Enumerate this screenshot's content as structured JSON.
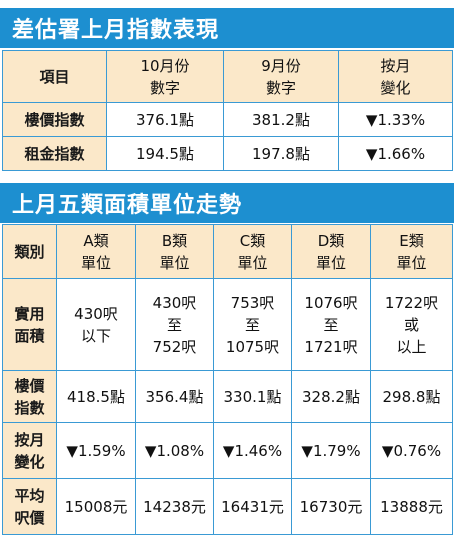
{
  "section1": {
    "title": "差估署上月指數表現",
    "headers": [
      {
        "line1": "項目",
        "line2": ""
      },
      {
        "line1": "10月份",
        "line2": "數字"
      },
      {
        "line1": "9月份",
        "line2": "數字"
      },
      {
        "line1": "按月",
        "line2": "變化"
      }
    ],
    "rows": [
      {
        "label": "樓價指數",
        "oct": "376.1點",
        "sep": "381.2點",
        "change": "▼1.33%"
      },
      {
        "label": "租金指數",
        "oct": "194.5點",
        "sep": "197.8點",
        "change": "▼1.66%"
      }
    ]
  },
  "section2": {
    "title": "上月五類面積單位走勢",
    "corner": "類別",
    "classes": [
      {
        "line1": "A類",
        "line2": "單位"
      },
      {
        "line1": "B類",
        "line2": "單位"
      },
      {
        "line1": "C類",
        "line2": "單位"
      },
      {
        "line1": "D類",
        "line2": "單位"
      },
      {
        "line1": "E類",
        "line2": "單位"
      }
    ],
    "rows": [
      {
        "label1": "實用",
        "label2": "面積",
        "cells": [
          [
            "430呎",
            "以下"
          ],
          [
            "430呎",
            "至",
            "752呎"
          ],
          [
            "753呎",
            "至",
            "1075呎"
          ],
          [
            "1076呎",
            "至",
            "1721呎"
          ],
          [
            "1722呎",
            "或",
            "以上"
          ]
        ]
      },
      {
        "label1": "樓價",
        "label2": "指數",
        "cells": [
          [
            "418.5點"
          ],
          [
            "356.4點"
          ],
          [
            "330.1點"
          ],
          [
            "328.2點"
          ],
          [
            "298.8點"
          ]
        ]
      },
      {
        "label1": "按月",
        "label2": "變化",
        "cells": [
          [
            "▼1.59%"
          ],
          [
            "▼1.08%"
          ],
          [
            "▼1.46%"
          ],
          [
            "▼1.79%"
          ],
          [
            "▼0.76%"
          ]
        ]
      },
      {
        "label1": "平均",
        "label2": "呎價",
        "cells": [
          [
            "15008元"
          ],
          [
            "14238元"
          ],
          [
            "16431元"
          ],
          [
            "16730元"
          ],
          [
            "13888元"
          ]
        ]
      }
    ]
  },
  "colors": {
    "header_blue": "#1d8fd0",
    "label_beige": "#fbe8c9",
    "border_blue": "#3a9ad4"
  }
}
